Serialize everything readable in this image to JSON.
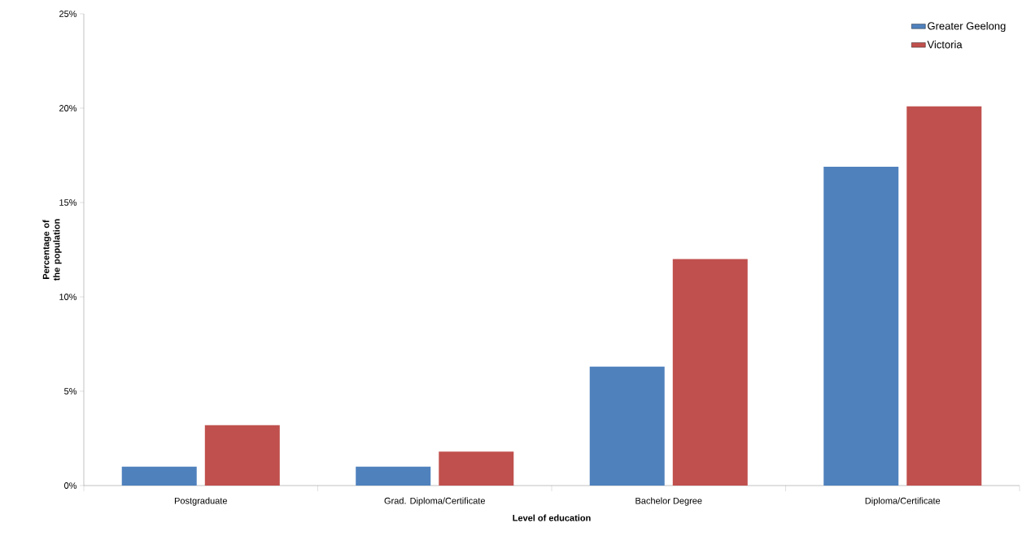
{
  "chart_data": {
    "type": "bar",
    "xlabel": "Level of education",
    "ylabel": "Percentage of the population",
    "categories": [
      "Postgraduate",
      "Grad. Diploma/Certificate",
      "Bachelor Degree",
      "Diploma/Certificate"
    ],
    "series": [
      {
        "name": "Greater Geelong",
        "color": "#4f81bd",
        "values": [
          1.0,
          1.0,
          6.3,
          16.9
        ]
      },
      {
        "name": "Victoria",
        "color": "#c0504d",
        "values": [
          3.2,
          1.8,
          12.0,
          20.1
        ]
      }
    ],
    "ylim": [
      0,
      25
    ],
    "yticks": [
      {
        "value": 0,
        "label": "0%"
      },
      {
        "value": 5,
        "label": "5%"
      },
      {
        "value": 10,
        "label": "10%"
      },
      {
        "value": 15,
        "label": "15%"
      },
      {
        "value": 20,
        "label": "20%"
      },
      {
        "value": 25,
        "label": "25%"
      }
    ],
    "grid": false,
    "legend": "top right"
  }
}
